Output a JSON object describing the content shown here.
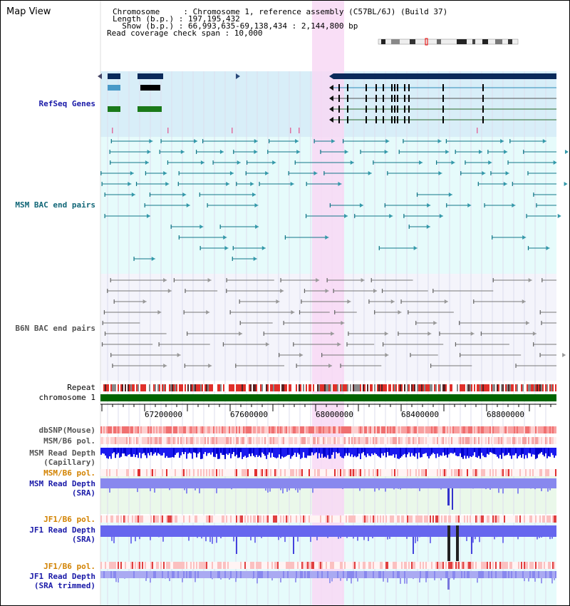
{
  "header": {
    "title": "Map View",
    "chromosome_line": "Chromosome     : Chromosome 1, reference assembly (C57BL/6J) (Build 37)",
    "length_line": "Length (b.p.) : 197,195,432",
    "show_line": "  Show (b.p.) : 66,993,635-69,138,434 : 2,144,800 bp",
    "coverage_line": "Read coverage check span : 10,000"
  },
  "tracks": {
    "refseq": "RefSeq Genes",
    "msm_bac": "MSM BAC end pairs",
    "b6n_bac": "B6N BAC end pairs",
    "repeat": "Repeat",
    "chromosome": "chromosome 1",
    "dbsnp": "dbSNP(Mouse)",
    "msm_b6_pol": "MSM/B6 pol.",
    "msm_read_depth_cap": "MSM Read Depth\n(Capillary)",
    "msm_b6_pol_2": "MSM/B6 pol.",
    "msm_read_depth_sra": "MSM Read Depth\n(SRA)",
    "jf1_b6_pol": "JF1/B6 pol.",
    "jf1_read_depth_sra": "JF1 Read Depth\n(SRA)",
    "jf1_b6_pol_2": "JF1/B6 pol.",
    "jf1_read_depth_trimmed": "JF1 Read Depth\n(SRA trimmed)"
  },
  "ruler": {
    "ticks": [
      "67200000",
      "67600000",
      "68000000",
      "68400000",
      "68800000"
    ]
  },
  "colors": {
    "refseq_bg": "#d8eef8",
    "bac_bg": "#e6fbfb",
    "b6n_bg": "#f4f4fb",
    "highlight": "#f8d8f4",
    "chromosome_bar": "#006400",
    "depth_blue": "#1a1aee",
    "depth_light": "#8888ee",
    "refseq_dark": "#0a2a5a"
  }
}
